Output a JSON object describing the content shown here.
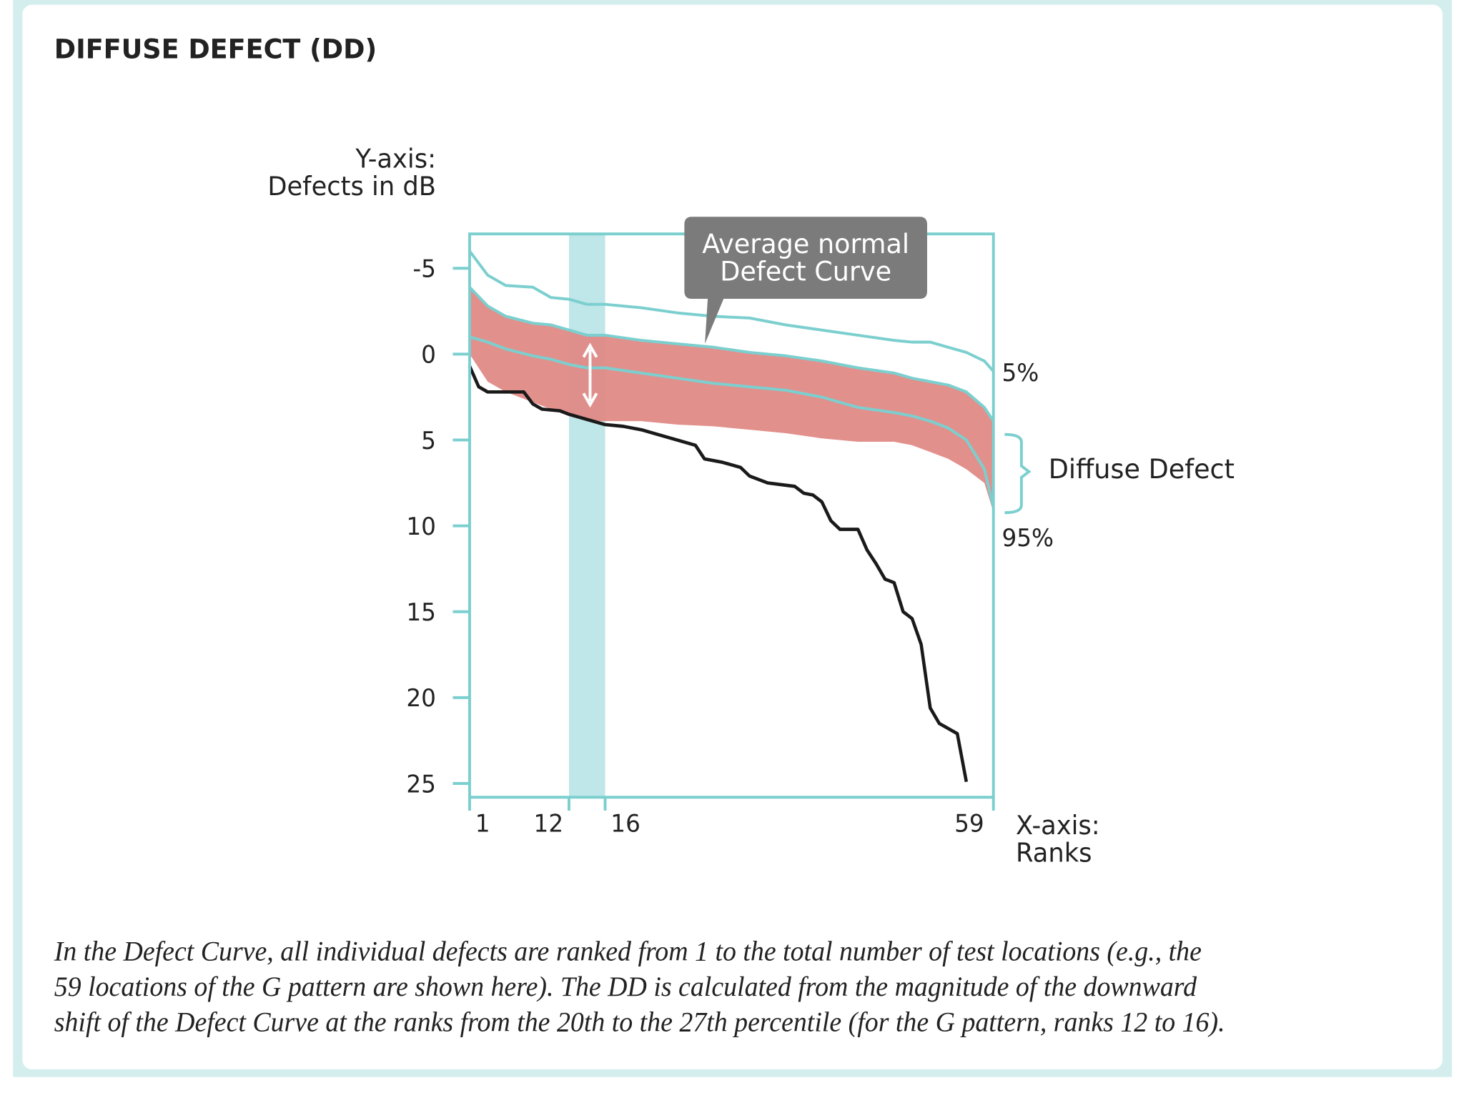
{
  "chart_data": {
    "type": "line",
    "title": "DIFFUSE DEFECT (DD)",
    "y_label": [
      "Y-axis:",
      "Defects in dB"
    ],
    "x_label": [
      "X-axis:",
      "Ranks"
    ],
    "callout": [
      "Average normal",
      "Defect Curve"
    ],
    "bracket_label": "Diffuse Defect",
    "caption": [
      "In the Defect Curve, all individual defects are ranked from 1 to the total number of test locations (e.g., the",
      "59 locations of the G pattern are shown here). The DD is calculated from the magnitude of the downward",
      "shift of the Defect Curve at the ranks from the 20th to the 27th percentile (for the G pattern, ranks 12 to 16)."
    ],
    "xlim": [
      1,
      59
    ],
    "ylim": [
      -7,
      25.8
    ],
    "y_inverted": true,
    "xticks": [
      1,
      12,
      16,
      59
    ],
    "yticks": [
      -5,
      0,
      5,
      10,
      15,
      20,
      25
    ],
    "highlight": {
      "range": [
        12,
        16
      ],
      "color": "#bfe6e8"
    },
    "series": [
      {
        "name": "5%",
        "color": "#7ccfcf",
        "x": [
          1,
          3,
          5,
          8,
          10,
          12,
          14,
          16,
          20,
          24,
          28,
          32,
          36,
          40,
          44,
          48,
          50,
          52,
          54,
          56,
          58,
          59
        ],
        "values": [
          -6.0,
          -4.6,
          -4.0,
          -3.9,
          -3.3,
          -3.2,
          -2.9,
          -2.9,
          -2.7,
          -2.4,
          -2.2,
          -2.1,
          -1.7,
          -1.4,
          -1.1,
          -0.8,
          -0.7,
          -0.7,
          -0.4,
          -0.1,
          0.4,
          1.0
        ]
      },
      {
        "color": "#7ccfcf",
        "band_color": "#e08a86",
        "x": [
          1,
          3,
          5,
          8,
          10,
          12,
          14,
          16,
          20,
          24,
          28,
          32,
          36,
          40,
          44,
          48,
          50,
          52,
          54,
          56,
          58,
          59
        ],
        "values": [
          -3.9,
          -2.8,
          -2.2,
          -1.8,
          -1.7,
          -1.4,
          -1.1,
          -1.1,
          -0.8,
          -0.6,
          -0.4,
          -0.1,
          0.1,
          0.4,
          0.8,
          1.1,
          1.4,
          1.6,
          1.8,
          2.2,
          3.1,
          3.9
        ],
        "band_lower": [
          0,
          1.6,
          2.2,
          2.8,
          3.2,
          3.6,
          3.9,
          3.9,
          3.9,
          4.1,
          4.2,
          4.4,
          4.6,
          4.9,
          5.1,
          5.1,
          5.3,
          5.7,
          6.1,
          6.7,
          7.5,
          9.2
        ]
      },
      {
        "name": "95%",
        "color": "#7ccfcf",
        "x": [
          1,
          3,
          5,
          8,
          10,
          12,
          14,
          16,
          20,
          24,
          28,
          32,
          36,
          40,
          44,
          48,
          50,
          52,
          54,
          56,
          58,
          59
        ],
        "values": [
          -1.0,
          -0.7,
          -0.3,
          0.1,
          0.3,
          0.6,
          0.8,
          0.8,
          1.1,
          1.4,
          1.7,
          1.9,
          2.1,
          2.5,
          3.1,
          3.4,
          3.6,
          3.9,
          4.3,
          5.0,
          6.7,
          8.9
        ]
      },
      {
        "color": "#1a1a1a",
        "x": [
          1,
          2,
          3,
          5,
          7,
          8,
          9,
          11,
          12,
          14,
          16,
          18,
          20,
          22,
          24,
          26,
          27,
          29,
          31,
          32,
          34,
          37,
          38,
          39,
          40,
          41,
          42,
          44,
          45,
          46,
          47,
          48,
          49,
          50,
          51,
          52,
          53,
          55,
          56
        ],
        "values": [
          0.7,
          1.9,
          2.2,
          2.2,
          2.2,
          2.9,
          3.2,
          3.3,
          3.5,
          3.8,
          4.1,
          4.2,
          4.4,
          4.7,
          5.0,
          5.3,
          6.1,
          6.3,
          6.6,
          7.1,
          7.5,
          7.7,
          8.1,
          8.2,
          8.6,
          9.7,
          10.2,
          10.2,
          11.4,
          12.2,
          13.1,
          13.3,
          15.0,
          15.4,
          16.9,
          20.6,
          21.5,
          22.1,
          24.9
        ]
      }
    ]
  }
}
